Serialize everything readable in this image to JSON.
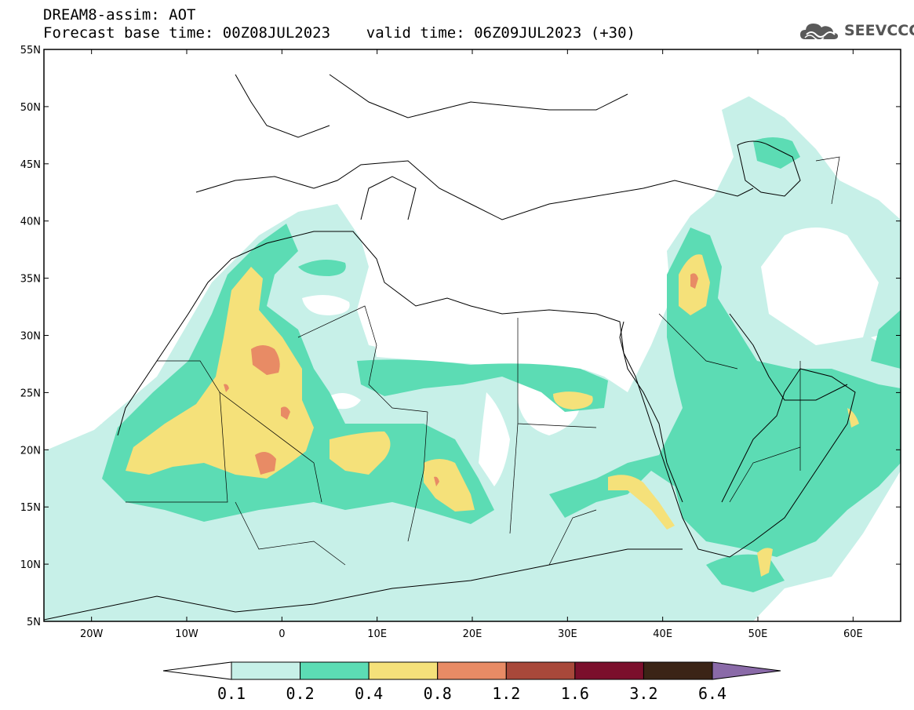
{
  "header": {
    "title": "DREAM8-assim: AOT",
    "subtitle": "Forecast base time: 00Z08JUL2023    valid time: 06Z09JUL2023 (+30)",
    "logo_text": "SEEVCCC",
    "logo_icon": "cloud-icon"
  },
  "map": {
    "lon_range": [
      -25,
      65
    ],
    "lat_range": [
      5,
      55
    ],
    "lat_ticks": [
      "5N",
      "10N",
      "15N",
      "20N",
      "25N",
      "30N",
      "35N",
      "40N",
      "45N",
      "50N",
      "55N"
    ],
    "lon_ticks": [
      "20W",
      "10W",
      "0",
      "10E",
      "20E",
      "30E",
      "40E",
      "50E",
      "60E"
    ]
  },
  "colorbar": {
    "levels": [
      "0.1",
      "0.2",
      "0.4",
      "0.8",
      "1.2",
      "1.6",
      "3.2",
      "6.4"
    ],
    "colors": [
      "#ffffff",
      "#c7f0e8",
      "#5cdcb4",
      "#f5e17a",
      "#e88b65",
      "#a8483a",
      "#7b0f2c",
      "#3b2416",
      "#8a6aa8"
    ]
  }
}
